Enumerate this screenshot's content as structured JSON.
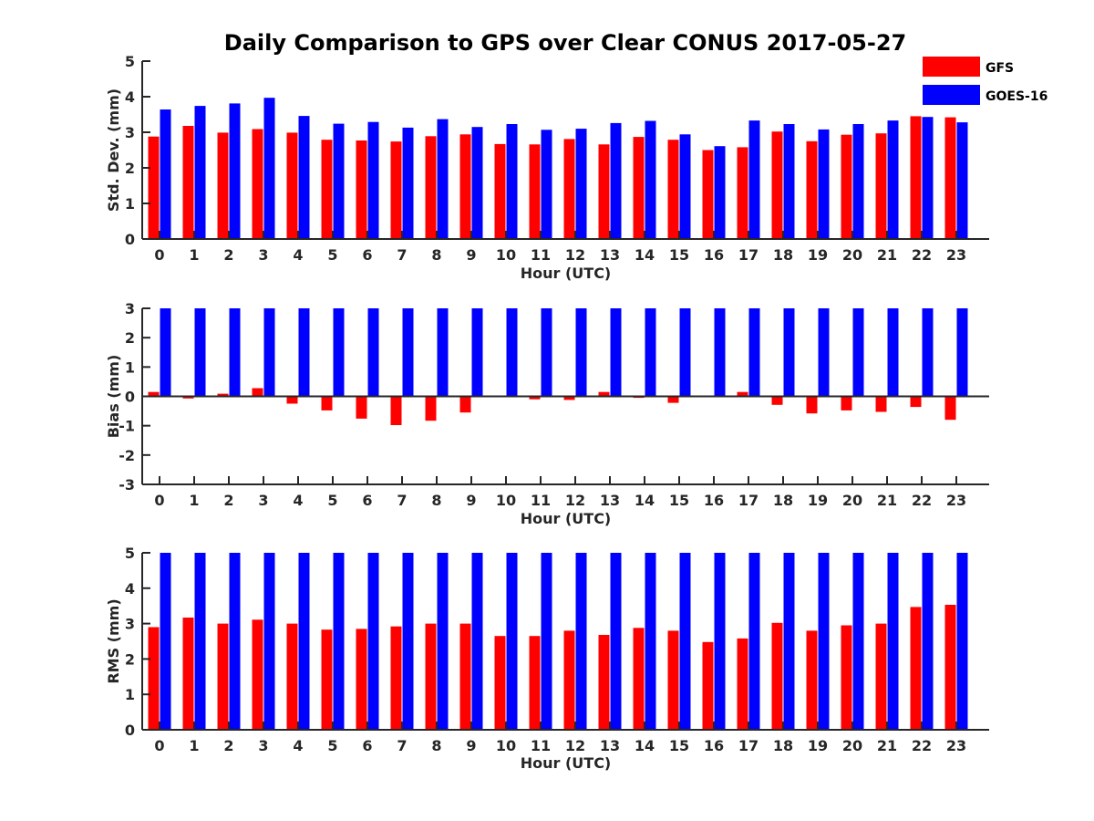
{
  "title": "Daily Comparison to GPS over Clear CONUS 2017-05-27",
  "colors": {
    "gfs": "#ff0000",
    "goes": "#0000ff",
    "axis": "#262626"
  },
  "chart_data": [
    {
      "type": "bar",
      "categories": [
        "0",
        "1",
        "2",
        "3",
        "4",
        "5",
        "6",
        "7",
        "8",
        "9",
        "10",
        "11",
        "12",
        "13",
        "14",
        "15",
        "16",
        "17",
        "18",
        "19",
        "20",
        "21",
        "22",
        "23"
      ],
      "xlabel": "Hour (UTC)",
      "ylabel": "Std. Dev. (mm)",
      "ylim": [
        0,
        5
      ],
      "yticks": [
        0,
        1,
        2,
        3,
        4,
        5
      ],
      "legend": "top-right",
      "series": [
        {
          "name": "GFS",
          "values": [
            2.88,
            3.18,
            2.99,
            3.09,
            2.99,
            2.79,
            2.77,
            2.74,
            2.89,
            2.94,
            2.67,
            2.66,
            2.81,
            2.66,
            2.87,
            2.79,
            2.5,
            2.58,
            3.02,
            2.75,
            2.93,
            2.97,
            3.45,
            3.42
          ]
        },
        {
          "name": "GOES-16",
          "values": [
            3.64,
            3.74,
            3.81,
            3.97,
            3.46,
            3.24,
            3.29,
            3.13,
            3.37,
            3.15,
            3.23,
            3.07,
            3.1,
            3.26,
            3.32,
            2.94,
            2.61,
            3.33,
            3.23,
            3.08,
            3.23,
            3.33,
            3.43,
            3.28
          ]
        }
      ]
    },
    {
      "type": "bar",
      "categories": [
        "0",
        "1",
        "2",
        "3",
        "4",
        "5",
        "6",
        "7",
        "8",
        "9",
        "10",
        "11",
        "12",
        "13",
        "14",
        "15",
        "16",
        "17",
        "18",
        "19",
        "20",
        "21",
        "22",
        "23"
      ],
      "xlabel": "Hour (UTC)",
      "ylabel": "Bias (mm)",
      "ylim": [
        -3,
        3
      ],
      "yticks": [
        -3,
        -2,
        -1,
        0,
        1,
        2,
        3
      ],
      "series": [
        {
          "name": "GFS",
          "values": [
            0.15,
            -0.07,
            0.09,
            0.28,
            -0.25,
            -0.48,
            -0.76,
            -0.98,
            -0.83,
            -0.55,
            -0.02,
            -0.1,
            -0.12,
            0.15,
            -0.05,
            -0.22,
            0.03,
            0.15,
            -0.29,
            -0.58,
            -0.48,
            -0.53,
            -0.36,
            -0.8
          ]
        },
        {
          "name": "GOES-16",
          "values": [
            3,
            3,
            3,
            3,
            3,
            3,
            3,
            3,
            3,
            3,
            3,
            3,
            3,
            3,
            3,
            3,
            3,
            3,
            3,
            3,
            3,
            3,
            3,
            3
          ]
        }
      ]
    },
    {
      "type": "bar",
      "categories": [
        "0",
        "1",
        "2",
        "3",
        "4",
        "5",
        "6",
        "7",
        "8",
        "9",
        "10",
        "11",
        "12",
        "13",
        "14",
        "15",
        "16",
        "17",
        "18",
        "19",
        "20",
        "21",
        "22",
        "23"
      ],
      "xlabel": "Hour (UTC)",
      "ylabel": "RMS (mm)",
      "ylim": [
        0,
        5
      ],
      "yticks": [
        0,
        1,
        2,
        3,
        4,
        5
      ],
      "series": [
        {
          "name": "GFS",
          "values": [
            2.9,
            3.17,
            3.0,
            3.11,
            3.0,
            2.83,
            2.85,
            2.92,
            3.0,
            3.0,
            2.65,
            2.65,
            2.8,
            2.68,
            2.88,
            2.8,
            2.48,
            2.58,
            3.02,
            2.8,
            2.95,
            3.0,
            3.47,
            3.53
          ]
        },
        {
          "name": "GOES-16",
          "values": [
            5,
            5,
            5,
            5,
            5,
            5,
            5,
            5,
            5,
            5,
            5,
            5,
            5,
            5,
            5,
            5,
            5,
            5,
            5,
            5,
            5,
            5,
            5,
            5
          ]
        }
      ]
    }
  ]
}
